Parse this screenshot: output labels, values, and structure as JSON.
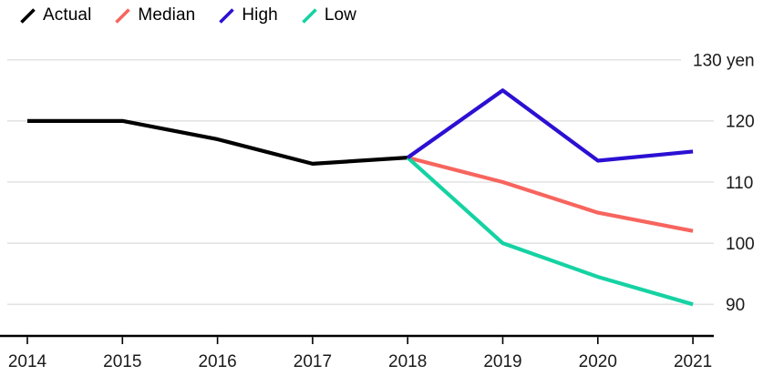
{
  "chart_data": {
    "type": "line",
    "title": "",
    "unit": "yen",
    "x_years": [
      2014,
      2015,
      2016,
      2017,
      2018,
      2019,
      2020,
      2021
    ],
    "xticks": [
      "2014",
      "2015",
      "2016",
      "2017",
      "2018",
      "2019",
      "2020",
      "2021"
    ],
    "yticks": [
      {
        "value": 130,
        "label": "130 yen"
      },
      {
        "value": 120,
        "label": "120"
      },
      {
        "value": 110,
        "label": "110"
      },
      {
        "value": 100,
        "label": "100"
      },
      {
        "value": 90,
        "label": "90"
      }
    ],
    "ylim": [
      85,
      132.5
    ],
    "grid": "horizontal",
    "legend_position": "top-left",
    "series": [
      {
        "name": "Actual",
        "color": "#000000",
        "x": [
          2014,
          2015,
          2016,
          2017,
          2018
        ],
        "values": [
          120,
          120,
          117,
          113,
          114
        ]
      },
      {
        "name": "Median",
        "color": "#f7655e",
        "x": [
          2018,
          2019,
          2020,
          2021
        ],
        "values": [
          114,
          110,
          105,
          102
        ]
      },
      {
        "name": "High",
        "color": "#2b10d3",
        "x": [
          2018,
          2019,
          2020,
          2021
        ],
        "values": [
          114,
          125,
          113.5,
          115
        ]
      },
      {
        "name": "Low",
        "color": "#16d2a3",
        "x": [
          2018,
          2019,
          2020,
          2021
        ],
        "values": [
          114,
          100,
          94.5,
          90
        ]
      }
    ],
    "colors": {
      "gridline": "#e3e3e3",
      "axis": "#000000",
      "tick_label": "#1a1a1a"
    }
  }
}
